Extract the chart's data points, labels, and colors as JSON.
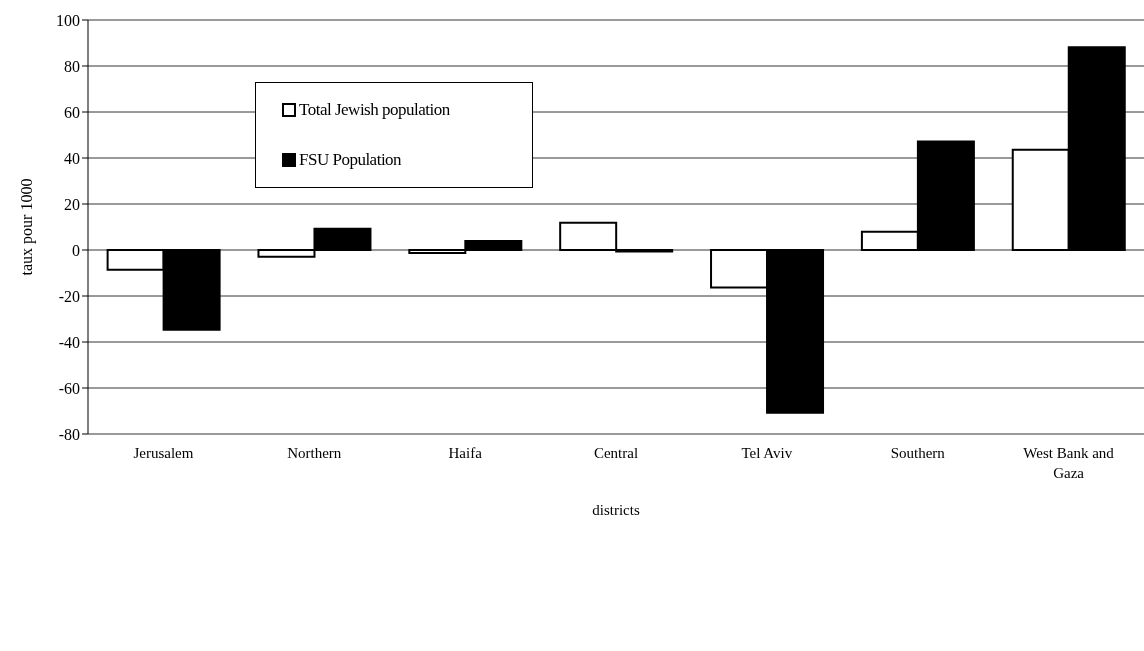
{
  "chart_data": {
    "type": "bar",
    "xlabel": "districts",
    "ylabel": "taux pour 1000",
    "categories": [
      "Jerusalem",
      "Northern",
      "Haifa",
      "Central",
      "Tel Aviv",
      "Southern",
      "West Bank and Gaza"
    ],
    "series": [
      {
        "name": "Total Jewish population",
        "color": "#ffffff",
        "values": [
          -8.6,
          -2.9,
          -1.3,
          11.8,
          -16.3,
          7.9,
          43.6
        ]
      },
      {
        "name": "FSU Population",
        "color": "#000000",
        "values": [
          -34.7,
          9.2,
          3.9,
          -0.6,
          -70.8,
          47.2,
          88.2
        ]
      }
    ],
    "ylim": [
      -80,
      100
    ],
    "yticks": [
      -80,
      -60,
      -40,
      -20,
      0,
      20,
      40,
      60,
      80,
      100
    ],
    "grid": "y",
    "legend": "top left"
  }
}
